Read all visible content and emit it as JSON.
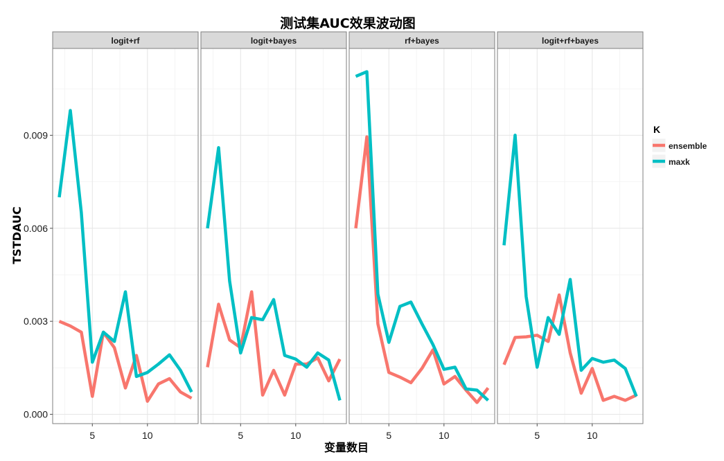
{
  "chart_data": {
    "type": "line",
    "title": "测试集AUC效果波动图",
    "xlabel": "变量数目",
    "ylabel": "TSTDAUC",
    "xlim": [
      1.4,
      14.6
    ],
    "ylim": [
      -0.0003,
      0.0118
    ],
    "x_ticks": [
      5,
      10
    ],
    "x_tick_labels": [
      "5",
      "10"
    ],
    "y_ticks": [
      0.0,
      0.003,
      0.006,
      0.009
    ],
    "y_tick_labels": [
      "0.000",
      "0.003",
      "0.006",
      "0.009"
    ],
    "grid": true,
    "legend": {
      "title": "K",
      "position": "right",
      "entries": [
        {
          "name": "ensemble",
          "color": "#F8766D"
        },
        {
          "name": "maxk",
          "color": "#00BFC4"
        }
      ]
    },
    "x": [
      2,
      3,
      4,
      5,
      6,
      7,
      8,
      9,
      10,
      11,
      12,
      13,
      14
    ],
    "panels": [
      {
        "name": "logit+rf",
        "series": [
          {
            "name": "ensemble",
            "values": [
              0.003,
              0.00285,
              0.00265,
              0.00058,
              0.00265,
              0.00215,
              0.00085,
              0.0019,
              0.00042,
              0.00098,
              0.00115,
              0.00072,
              0.00052
            ]
          },
          {
            "name": "maxk",
            "values": [
              0.007,
              0.0098,
              0.0065,
              0.00168,
              0.00265,
              0.00235,
              0.00395,
              0.00122,
              0.00135,
              0.00162,
              0.00192,
              0.00142,
              0.00072
            ]
          }
        ]
      },
      {
        "name": "logit+bayes",
        "series": [
          {
            "name": "ensemble",
            "values": [
              0.00152,
              0.00355,
              0.0024,
              0.00215,
              0.00395,
              0.00062,
              0.00142,
              0.00062,
              0.00162,
              0.00162,
              0.00182,
              0.00108,
              0.00178
            ]
          },
          {
            "name": "maxk",
            "values": [
              0.006,
              0.0086,
              0.0043,
              0.00198,
              0.00312,
              0.00305,
              0.0037,
              0.0019,
              0.00178,
              0.00152,
              0.00198,
              0.00175,
              0.00045
            ]
          }
        ]
      },
      {
        "name": "rf+bayes",
        "series": [
          {
            "name": "ensemble",
            "values": [
              0.006,
              0.00895,
              0.00292,
              0.00135,
              0.0012,
              0.00102,
              0.00148,
              0.00208,
              0.00098,
              0.00122,
              0.00078,
              0.00038,
              0.00085
            ]
          },
          {
            "name": "maxk",
            "values": [
              0.0109,
              0.01105,
              0.00388,
              0.00232,
              0.00348,
              0.00362,
              0.00292,
              0.00225,
              0.00145,
              0.00152,
              0.00082,
              0.00078,
              0.00045
            ]
          }
        ]
      },
      {
        "name": "logit+rf+bayes",
        "series": [
          {
            "name": "ensemble",
            "values": [
              0.0016,
              0.00248,
              0.0025,
              0.00255,
              0.00235,
              0.00385,
              0.00198,
              0.00068,
              0.00148,
              0.00045,
              0.00058,
              0.00045,
              0.00062
            ]
          },
          {
            "name": "maxk",
            "values": [
              0.00545,
              0.009,
              0.0038,
              0.00152,
              0.00312,
              0.00258,
              0.00435,
              0.00142,
              0.0018,
              0.00168,
              0.00175,
              0.00148,
              0.00058
            ]
          }
        ]
      }
    ]
  }
}
